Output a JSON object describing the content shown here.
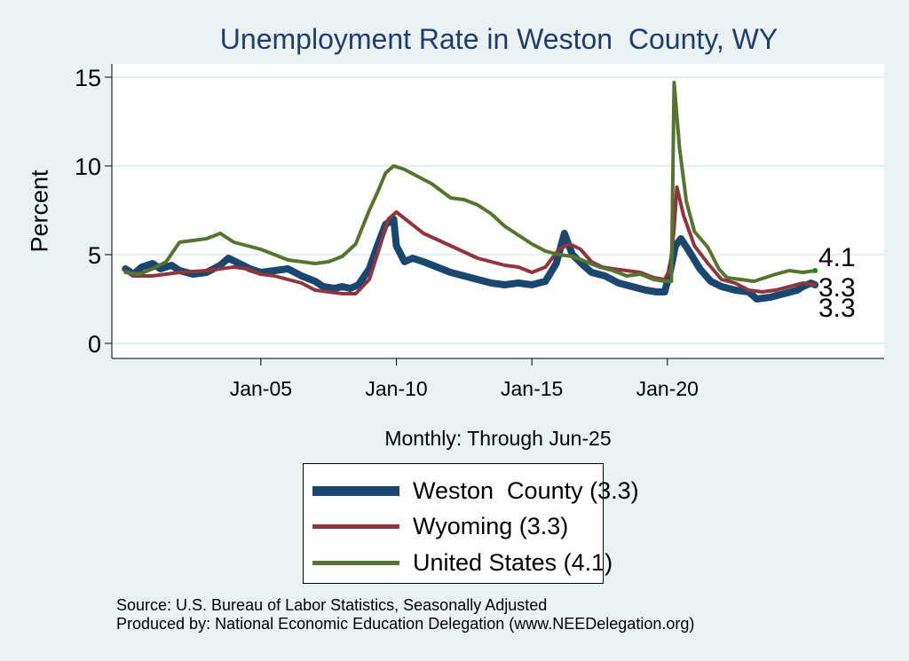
{
  "page": {
    "background": "#eaf2f3"
  },
  "chart_data": {
    "type": "line",
    "title": "Unemployment Rate in Weston  County, WY",
    "xlabel": "Monthly: Through Jun-25",
    "ylabel": "Percent",
    "ylim": [
      0,
      15
    ],
    "yticks": [
      0,
      5,
      10,
      15
    ],
    "xticks": [
      {
        "value": 2005,
        "label": "Jan-05"
      },
      {
        "value": 2010,
        "label": "Jan-10"
      },
      {
        "value": 2015,
        "label": "Jan-15"
      },
      {
        "value": 2020,
        "label": "Jan-20"
      }
    ],
    "xlim": [
      1999.5,
      2028
    ],
    "grid": true,
    "legend_position": "bottom",
    "end_labels": [
      "4.1",
      "3.3",
      "3.3"
    ],
    "series": [
      {
        "name": "Weston  County (3.3)",
        "color": "#1a476f",
        "points": [
          [
            2000,
            4.2
          ],
          [
            2000.3,
            3.9
          ],
          [
            2000.6,
            4.3
          ],
          [
            2001,
            4.5
          ],
          [
            2001.3,
            4.2
          ],
          [
            2001.7,
            4.4
          ],
          [
            2002,
            4.1
          ],
          [
            2002.5,
            3.9
          ],
          [
            2003,
            4.0
          ],
          [
            2003.5,
            4.4
          ],
          [
            2003.8,
            4.8
          ],
          [
            2004.2,
            4.5
          ],
          [
            2004.6,
            4.2
          ],
          [
            2005,
            4.0
          ],
          [
            2005.5,
            4.1
          ],
          [
            2006,
            4.2
          ],
          [
            2006.5,
            3.8
          ],
          [
            2007,
            3.5
          ],
          [
            2007.3,
            3.2
          ],
          [
            2007.7,
            3.1
          ],
          [
            2008,
            3.2
          ],
          [
            2008.3,
            3.1
          ],
          [
            2008.6,
            3.3
          ],
          [
            2009,
            4.2
          ],
          [
            2009.3,
            5.5
          ],
          [
            2009.6,
            6.7
          ],
          [
            2009.9,
            7.0
          ],
          [
            2010,
            5.5
          ],
          [
            2010.3,
            4.6
          ],
          [
            2010.6,
            4.8
          ],
          [
            2011,
            4.6
          ],
          [
            2011.5,
            4.3
          ],
          [
            2012,
            4.0
          ],
          [
            2012.5,
            3.8
          ],
          [
            2013,
            3.6
          ],
          [
            2013.5,
            3.4
          ],
          [
            2014,
            3.3
          ],
          [
            2014.5,
            3.4
          ],
          [
            2015,
            3.3
          ],
          [
            2015.5,
            3.5
          ],
          [
            2015.9,
            4.5
          ],
          [
            2016.2,
            6.2
          ],
          [
            2016.5,
            5.0
          ],
          [
            2016.9,
            4.4
          ],
          [
            2017.2,
            4.0
          ],
          [
            2017.7,
            3.8
          ],
          [
            2018.2,
            3.4
          ],
          [
            2018.7,
            3.2
          ],
          [
            2019.2,
            3.0
          ],
          [
            2019.6,
            2.9
          ],
          [
            2019.9,
            2.9
          ],
          [
            2020.1,
            4.0
          ],
          [
            2020.3,
            5.5
          ],
          [
            2020.5,
            5.9
          ],
          [
            2020.8,
            5.2
          ],
          [
            2021.2,
            4.2
          ],
          [
            2021.6,
            3.5
          ],
          [
            2022,
            3.2
          ],
          [
            2022.5,
            3.0
          ],
          [
            2023,
            2.9
          ],
          [
            2023.3,
            2.5
          ],
          [
            2023.8,
            2.6
          ],
          [
            2024.3,
            2.8
          ],
          [
            2024.8,
            3.0
          ],
          [
            2025,
            3.2
          ],
          [
            2025.3,
            3.4
          ],
          [
            2025.45,
            3.3
          ]
        ]
      },
      {
        "name": "Wyoming (3.3)",
        "color": "#90353b",
        "points": [
          [
            2000,
            4.1
          ],
          [
            2000.3,
            3.8
          ],
          [
            2001,
            3.8
          ],
          [
            2001.5,
            3.9
          ],
          [
            2002,
            4.0
          ],
          [
            2003,
            4.1
          ],
          [
            2003.5,
            4.2
          ],
          [
            2004,
            4.3
          ],
          [
            2004.5,
            4.2
          ],
          [
            2005,
            3.9
          ],
          [
            2005.5,
            3.8
          ],
          [
            2006,
            3.6
          ],
          [
            2006.5,
            3.4
          ],
          [
            2007,
            3.0
          ],
          [
            2007.5,
            2.9
          ],
          [
            2008,
            2.8
          ],
          [
            2008.5,
            2.8
          ],
          [
            2009,
            3.6
          ],
          [
            2009.4,
            5.5
          ],
          [
            2009.7,
            7.0
          ],
          [
            2010,
            7.4
          ],
          [
            2010.5,
            6.8
          ],
          [
            2011,
            6.2
          ],
          [
            2012,
            5.5
          ],
          [
            2013,
            4.8
          ],
          [
            2014,
            4.4
          ],
          [
            2014.5,
            4.3
          ],
          [
            2015,
            4.0
          ],
          [
            2015.5,
            4.3
          ],
          [
            2016,
            5.3
          ],
          [
            2016.4,
            5.6
          ],
          [
            2016.8,
            5.3
          ],
          [
            2017.2,
            4.6
          ],
          [
            2017.6,
            4.3
          ],
          [
            2018,
            4.2
          ],
          [
            2018.5,
            4.1
          ],
          [
            2019,
            4.0
          ],
          [
            2019.5,
            3.7
          ],
          [
            2019.9,
            3.6
          ],
          [
            2020.1,
            4.2
          ],
          [
            2020.25,
            6.5
          ],
          [
            2020.35,
            8.8
          ],
          [
            2020.6,
            7.2
          ],
          [
            2021,
            5.5
          ],
          [
            2021.5,
            4.5
          ],
          [
            2022,
            3.6
          ],
          [
            2022.5,
            3.4
          ],
          [
            2023,
            3.0
          ],
          [
            2023.5,
            2.9
          ],
          [
            2024,
            3.0
          ],
          [
            2024.5,
            3.2
          ],
          [
            2025,
            3.4
          ],
          [
            2025.45,
            3.3
          ]
        ]
      },
      {
        "name": "United States (4.1)",
        "color": "#55752f",
        "points": [
          [
            2000,
            4.0
          ],
          [
            2000.5,
            3.9
          ],
          [
            2001,
            4.2
          ],
          [
            2001.5,
            4.6
          ],
          [
            2002,
            5.7
          ],
          [
            2002.5,
            5.8
          ],
          [
            2003,
            5.9
          ],
          [
            2003.5,
            6.2
          ],
          [
            2004,
            5.7
          ],
          [
            2004.5,
            5.5
          ],
          [
            2005,
            5.3
          ],
          [
            2005.5,
            5.0
          ],
          [
            2006,
            4.7
          ],
          [
            2006.5,
            4.6
          ],
          [
            2007,
            4.5
          ],
          [
            2007.5,
            4.6
          ],
          [
            2008,
            4.9
          ],
          [
            2008.5,
            5.6
          ],
          [
            2009,
            7.5
          ],
          [
            2009.3,
            8.5
          ],
          [
            2009.6,
            9.6
          ],
          [
            2009.9,
            10.0
          ],
          [
            2010.3,
            9.8
          ],
          [
            2010.8,
            9.4
          ],
          [
            2011.3,
            9.0
          ],
          [
            2012,
            8.2
          ],
          [
            2012.5,
            8.1
          ],
          [
            2013,
            7.8
          ],
          [
            2013.5,
            7.3
          ],
          [
            2014,
            6.6
          ],
          [
            2014.5,
            6.1
          ],
          [
            2015,
            5.6
          ],
          [
            2015.5,
            5.2
          ],
          [
            2016,
            5.0
          ],
          [
            2016.5,
            4.9
          ],
          [
            2017,
            4.6
          ],
          [
            2017.5,
            4.3
          ],
          [
            2018,
            4.1
          ],
          [
            2018.5,
            3.8
          ],
          [
            2019,
            3.9
          ],
          [
            2019.5,
            3.6
          ],
          [
            2019.9,
            3.5
          ],
          [
            2020.15,
            3.5
          ],
          [
            2020.25,
            14.7
          ],
          [
            2020.45,
            11.0
          ],
          [
            2020.7,
            8.0
          ],
          [
            2021,
            6.3
          ],
          [
            2021.5,
            5.4
          ],
          [
            2021.9,
            4.2
          ],
          [
            2022.2,
            3.7
          ],
          [
            2022.7,
            3.6
          ],
          [
            2023.2,
            3.5
          ],
          [
            2023.6,
            3.7
          ],
          [
            2024,
            3.9
          ],
          [
            2024.5,
            4.1
          ],
          [
            2025,
            4.0
          ],
          [
            2025.45,
            4.1
          ]
        ]
      }
    ]
  },
  "legend": {
    "items": [
      "Weston  County (3.3)",
      "Wyoming (3.3)",
      "United States (4.1)"
    ]
  },
  "footer": {
    "source": "Source: U.S. Bureau of Labor Statistics, Seasonally Adjusted",
    "produced": "Produced by: National Economic Education Delegation (www.NEEDelegation.org)"
  }
}
